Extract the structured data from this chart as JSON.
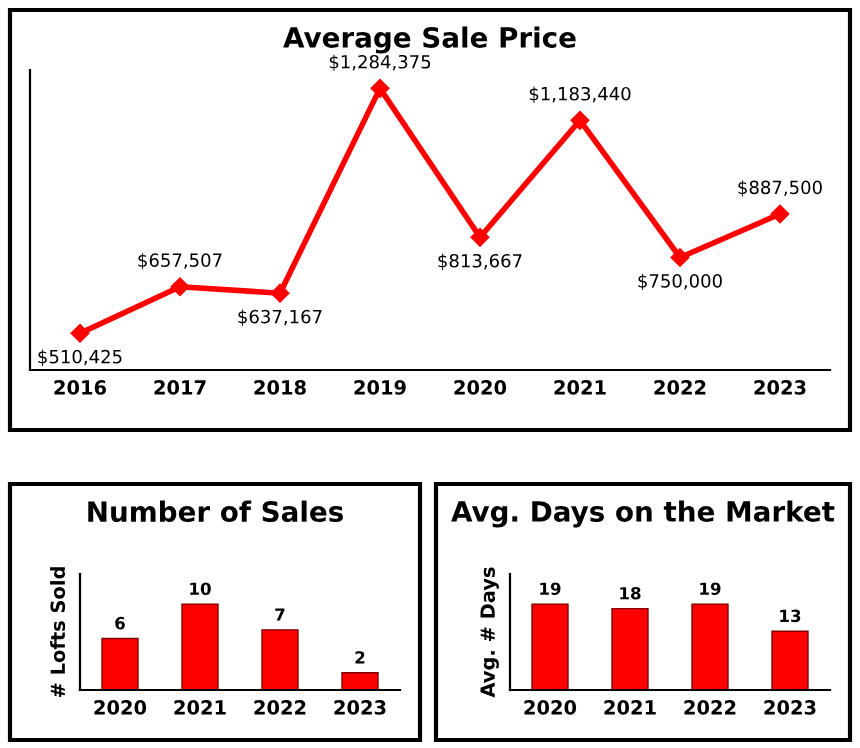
{
  "chart_data": [
    {
      "type": "line",
      "title": "Average Sale Price",
      "categories": [
        "2016",
        "2017",
        "2018",
        "2019",
        "2020",
        "2021",
        "2022",
        "2023"
      ],
      "values": [
        510425,
        657507,
        637167,
        1284375,
        813667,
        1183440,
        750000,
        887500
      ],
      "value_labels": [
        "$510,425",
        "$657,507",
        "$637,167",
        "$1,284,375",
        "$813,667",
        "$1,183,440",
        "$750,000",
        "$887,500"
      ],
      "color": "#ff0000",
      "marker": "diamond",
      "tick_labels": "x"
    },
    {
      "type": "bar",
      "title": "Number of Sales",
      "ylabel": "# Lofts Sold",
      "categories": [
        "2020",
        "2021",
        "2022",
        "2023"
      ],
      "values": [
        6,
        10,
        7,
        2
      ],
      "color": "#ff0000",
      "data_labels": true,
      "tick_labels": "x"
    },
    {
      "type": "bar",
      "title": "Avg. Days on the Market",
      "ylabel": "Avg. # Days",
      "categories": [
        "2020",
        "2021",
        "2022",
        "2023"
      ],
      "values": [
        19,
        18,
        19,
        13
      ],
      "color": "#ff0000",
      "data_labels": true,
      "tick_labels": "x"
    }
  ]
}
